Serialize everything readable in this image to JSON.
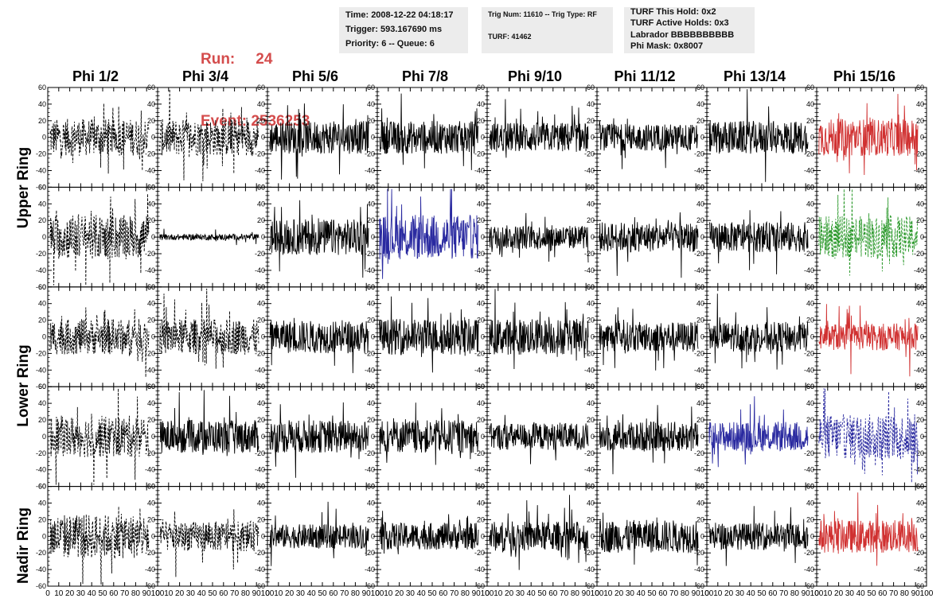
{
  "header": {
    "run_label": "Run:",
    "run_value": "24",
    "event_label": "Event:",
    "event_value": "2536253",
    "time": "Time: 2008-12-22 04:18:17",
    "trigger": "Trigger: 593.167690 ms",
    "priority": "Priority: 6 -- Queue: 6",
    "trig": "Trig Num: 11610 -- Trig Type: RF",
    "turf": "TURF: 41462",
    "turf_hold": "TURF This Hold: 0x2",
    "turf_active": "TURF Active Holds: 0x3",
    "labrador": "Labrador BBBBBBBBBB",
    "phi_mask": "Phi Mask: 0x8007"
  },
  "columns": [
    "Phi 1/2",
    "Phi 3/4",
    "Phi 5/6",
    "Phi 7/8",
    "Phi 9/10",
    "Phi 11/12",
    "Phi 13/14",
    "Phi 15/16"
  ],
  "ring_labels": [
    "Upper Ring",
    "Lower Ring",
    "Nadir Ring"
  ],
  "colors": {
    "red": "#d03030",
    "blue": "#2a2aa0",
    "green": "#2e9a2e",
    "black": "#000000",
    "header_red": "#d44c4c"
  },
  "chart_data": {
    "type": "line",
    "description_rows": 5,
    "xlim": [
      0,
      100
    ],
    "ylim": [
      -60,
      60
    ],
    "y_ticks": [
      -60,
      -40,
      -20,
      0,
      20,
      40,
      60
    ],
    "x_ticks": [
      0,
      10,
      20,
      30,
      40,
      50,
      60,
      70,
      80,
      90,
      100
    ],
    "panels": [
      [
        {
          "color": "black",
          "dash": true,
          "amp": 25
        },
        {
          "color": "black",
          "dash": true,
          "amp": 25
        },
        {
          "color": "black",
          "dash": false,
          "amp": 22
        },
        {
          "color": "black",
          "dash": false,
          "amp": 22
        },
        {
          "color": "black",
          "dash": false,
          "amp": 20
        },
        {
          "color": "black",
          "dash": false,
          "amp": 18
        },
        {
          "color": "black",
          "dash": false,
          "amp": 22
        },
        {
          "color": "red",
          "dash": false,
          "amp": 25
        }
      ],
      [
        {
          "color": "black",
          "dash": true,
          "amp": 30
        },
        {
          "color": "black",
          "dash": false,
          "amp": 4
        },
        {
          "color": "black",
          "dash": false,
          "amp": 24
        },
        {
          "color": "blue",
          "dash": false,
          "amp": 30
        },
        {
          "color": "black",
          "dash": false,
          "amp": 16
        },
        {
          "color": "black",
          "dash": false,
          "amp": 20
        },
        {
          "color": "black",
          "dash": false,
          "amp": 20
        },
        {
          "color": "green",
          "dash": true,
          "amp": 28
        }
      ],
      [
        {
          "color": "black",
          "dash": true,
          "amp": 24
        },
        {
          "color": "black",
          "dash": true,
          "amp": 24
        },
        {
          "color": "black",
          "dash": false,
          "amp": 22
        },
        {
          "color": "black",
          "dash": false,
          "amp": 24
        },
        {
          "color": "black",
          "dash": false,
          "amp": 24
        },
        {
          "color": "black",
          "dash": false,
          "amp": 20
        },
        {
          "color": "black",
          "dash": false,
          "amp": 20
        },
        {
          "color": "red",
          "dash": false,
          "amp": 18
        }
      ],
      [
        {
          "color": "black",
          "dash": true,
          "amp": 28
        },
        {
          "color": "black",
          "dash": false,
          "amp": 22
        },
        {
          "color": "black",
          "dash": false,
          "amp": 22
        },
        {
          "color": "black",
          "dash": false,
          "amp": 22
        },
        {
          "color": "black",
          "dash": false,
          "amp": 18
        },
        {
          "color": "black",
          "dash": false,
          "amp": 20
        },
        {
          "color": "blue",
          "dash": false,
          "amp": 20
        },
        {
          "color": "blue",
          "dash": true,
          "amp": 30
        }
      ],
      [
        {
          "color": "black",
          "dash": true,
          "amp": 30
        },
        {
          "color": "black",
          "dash": true,
          "amp": 20
        },
        {
          "color": "black",
          "dash": false,
          "amp": 16
        },
        {
          "color": "black",
          "dash": false,
          "amp": 18
        },
        {
          "color": "black",
          "dash": false,
          "amp": 20
        },
        {
          "color": "black",
          "dash": false,
          "amp": 22
        },
        {
          "color": "black",
          "dash": false,
          "amp": 18
        },
        {
          "color": "red",
          "dash": false,
          "amp": 22
        }
      ]
    ]
  }
}
